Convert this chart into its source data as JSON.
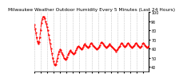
{
  "title": "Milwaukee Weather Outdoor Humidity Every 5 Minutes (Last 24 Hours)",
  "background_color": "#ffffff",
  "plot_bg_color": "#ffffff",
  "line_color": "#ff0000",
  "grid_color": "#aaaaaa",
  "y_values": [
    86,
    82,
    78,
    72,
    68,
    65,
    67,
    72,
    80,
    88,
    92,
    95,
    95,
    93,
    90,
    87,
    84,
    80,
    75,
    70,
    65,
    60,
    55,
    50,
    46,
    43,
    42,
    43,
    46,
    50,
    54,
    57,
    59,
    58,
    56,
    54,
    52,
    50,
    49,
    48,
    49,
    51,
    53,
    55,
    57,
    58,
    57,
    56,
    55,
    54,
    55,
    56,
    58,
    60,
    62,
    63,
    62,
    61,
    60,
    59,
    60,
    62,
    64,
    65,
    64,
    63,
    62,
    61,
    62,
    63,
    65,
    66,
    65,
    64,
    63,
    62,
    61,
    60,
    59,
    60,
    61,
    62,
    64,
    66,
    67,
    66,
    65,
    64,
    63,
    62,
    61,
    62,
    63,
    64,
    65,
    64,
    63,
    62,
    61,
    60,
    59,
    58,
    57,
    58,
    59,
    61,
    62,
    63,
    65,
    66,
    65,
    64,
    63,
    62,
    63,
    64,
    65,
    66,
    65,
    64,
    63,
    62,
    61,
    62,
    63,
    64,
    65,
    66,
    65,
    64,
    63,
    62,
    61,
    62,
    63,
    65,
    66,
    65,
    64,
    63,
    62,
    61,
    62,
    63
  ],
  "ylim": [
    35,
    100
  ],
  "yticks": [
    40,
    50,
    60,
    70,
    80,
    90,
    100
  ],
  "ytick_labels": [
    "40",
    "50",
    "60",
    "70",
    "80",
    "90",
    "100"
  ],
  "num_xgrid_lines": 18,
  "tick_fontsize": 3.5,
  "title_fontsize": 4.2,
  "line_width": 0.7,
  "marker_size": 1.2
}
